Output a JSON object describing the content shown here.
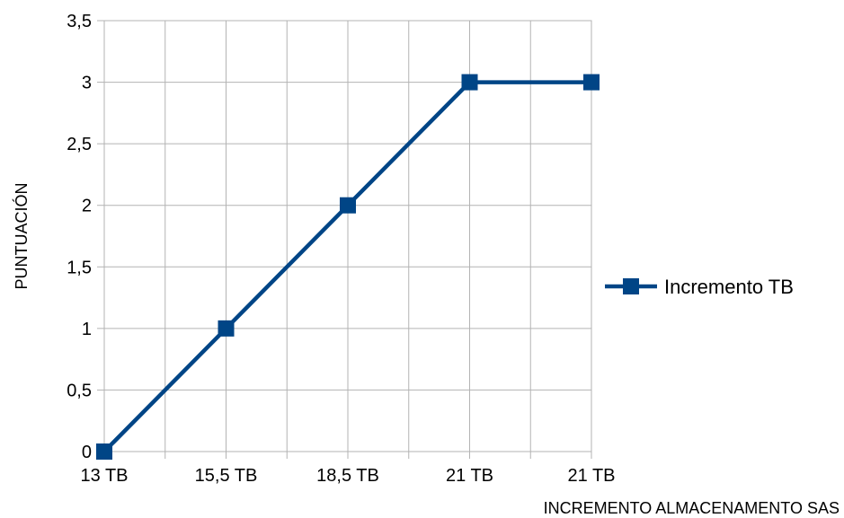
{
  "chart_data": {
    "type": "line",
    "title": "",
    "xlabel": "INCREMENTO ALMACENAMENTO SAS",
    "ylabel": "PUNTUACIÓN",
    "categories": [
      "13 TB",
      "",
      "15,5 TB",
      "",
      "18,5 TB",
      "",
      "21 TB",
      "",
      "21 TB"
    ],
    "series": [
      {
        "name": "Incremento TB",
        "color": "#004586",
        "points": [
          {
            "x_index": 0,
            "y": 0
          },
          {
            "x_index": 2,
            "y": 1
          },
          {
            "x_index": 4,
            "y": 2
          },
          {
            "x_index": 6,
            "y": 3
          },
          {
            "x_index": 8,
            "y": 3
          }
        ]
      }
    ],
    "ylim": [
      0,
      3.5
    ],
    "yticks": [
      "0",
      "0,5",
      "1",
      "1,5",
      "2",
      "2,5",
      "3",
      "3,5"
    ],
    "grid": true,
    "legend_position": "right"
  }
}
